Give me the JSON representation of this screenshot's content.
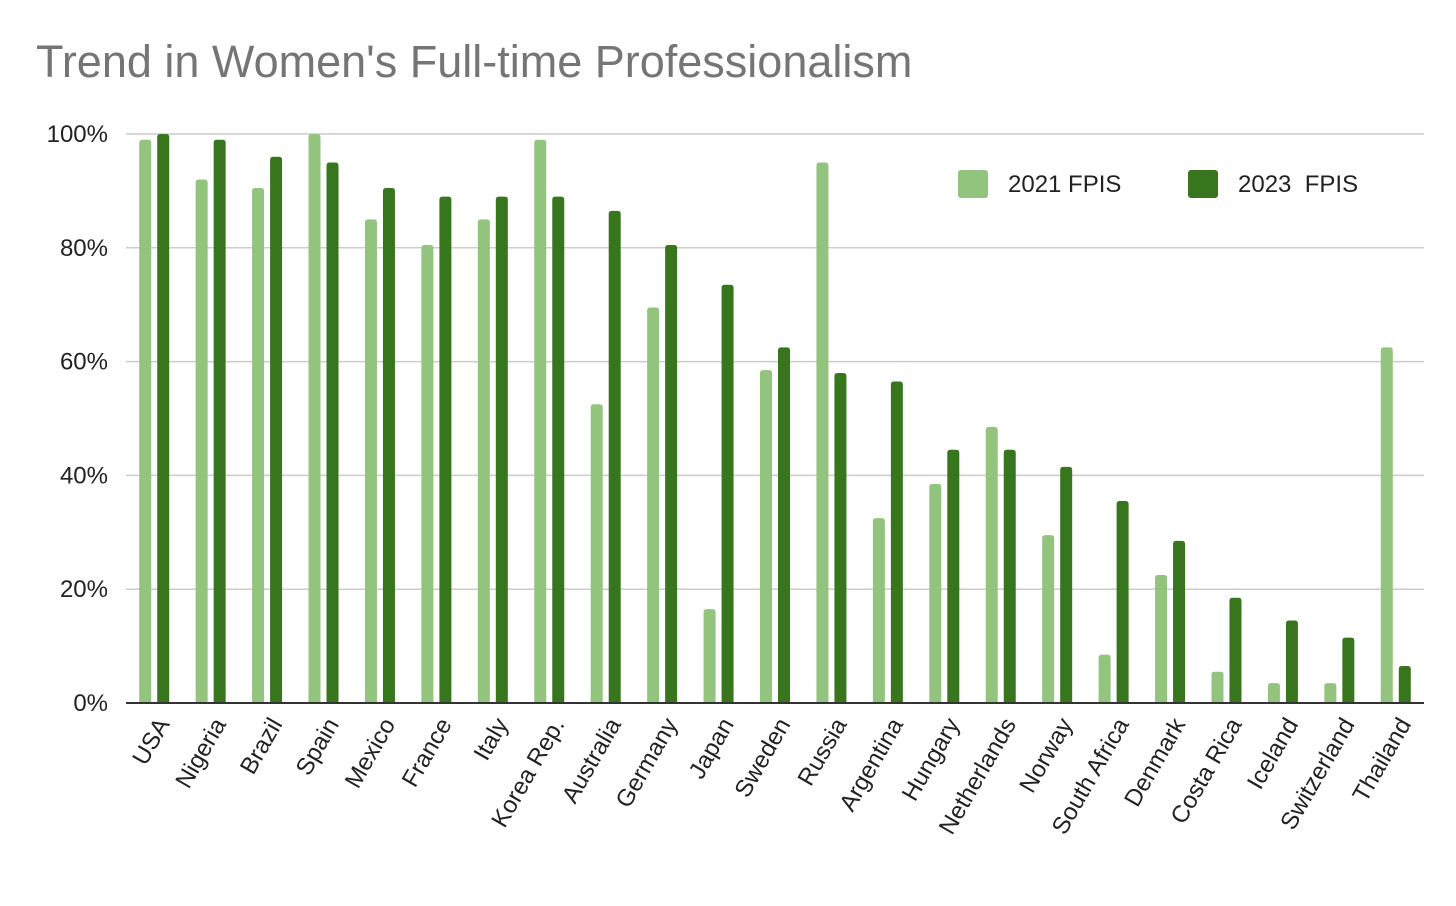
{
  "chart_data": {
    "type": "bar",
    "title": "Trend in Women's Full-time Professionalism",
    "xlabel": "",
    "ylabel": "",
    "ylim": [
      0,
      100
    ],
    "y_ticks": [
      "0%",
      "20%",
      "40%",
      "60%",
      "80%",
      "100%"
    ],
    "y_tick_values": [
      0,
      20,
      40,
      60,
      80,
      100
    ],
    "grid": true,
    "legend_position": "top-right",
    "categories": [
      "USA",
      "Nigeria",
      "Brazil",
      "Spain",
      "Mexico",
      "France",
      "Italy",
      "Korea Rep.",
      "Australia",
      "Germany",
      "Japan",
      "Sweden",
      "Russia",
      "Argentina",
      "Hungary",
      "Netherlands",
      "Norway",
      "South Africa",
      "Denmark",
      "Costa Rica",
      "Iceland",
      "Switzerland",
      "Thailand"
    ],
    "series": [
      {
        "name": "2021 FPIS",
        "color": "#93c47d",
        "values": [
          99,
          92,
          90.5,
          100,
          85,
          80.5,
          85,
          99,
          52.5,
          69.5,
          16.5,
          58.5,
          95,
          32.5,
          38.5,
          48.5,
          29.5,
          8.5,
          22.5,
          5.5,
          3.5,
          3.5,
          62.5
        ]
      },
      {
        "name": "2023  FPIS",
        "color": "#38761d",
        "values": [
          100,
          99,
          96,
          95,
          90.5,
          89,
          89,
          89,
          86.5,
          80.5,
          73.5,
          62.5,
          58,
          56.5,
          44.5,
          44.5,
          41.5,
          35.5,
          28.5,
          18.5,
          14.5,
          11.5,
          6.5
        ]
      }
    ]
  }
}
